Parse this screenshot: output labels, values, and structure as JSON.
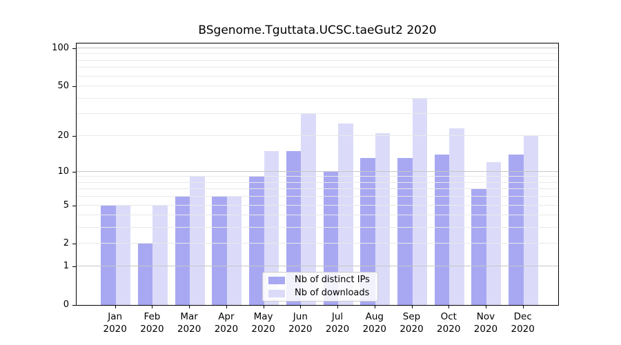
{
  "chart_data": {
    "type": "bar",
    "title": "BSgenome.Tguttata.UCSC.taeGut2 2020",
    "categories": [
      {
        "month": "Jan",
        "year": "2020"
      },
      {
        "month": "Feb",
        "year": "2020"
      },
      {
        "month": "Mar",
        "year": "2020"
      },
      {
        "month": "Apr",
        "year": "2020"
      },
      {
        "month": "May",
        "year": "2020"
      },
      {
        "month": "Jun",
        "year": "2020"
      },
      {
        "month": "Jul",
        "year": "2020"
      },
      {
        "month": "Aug",
        "year": "2020"
      },
      {
        "month": "Sep",
        "year": "2020"
      },
      {
        "month": "Oct",
        "year": "2020"
      },
      {
        "month": "Nov",
        "year": "2020"
      },
      {
        "month": "Dec",
        "year": "2020"
      }
    ],
    "series": [
      {
        "name": "Nb of distinct IPs",
        "color": "#a8a8f2",
        "values": [
          5,
          2,
          6,
          6,
          9,
          15,
          10,
          13,
          13,
          14,
          7,
          14
        ]
      },
      {
        "name": "Nb of downloads",
        "color": "#dbdbf9",
        "values": [
          5,
          5,
          9,
          6,
          15,
          30,
          25,
          21,
          40,
          23,
          12,
          20
        ]
      }
    ],
    "y_axis": {
      "scale": "log1p",
      "min": 0,
      "max": 100,
      "tick_labels": [
        100,
        50,
        20,
        10,
        5,
        2,
        1,
        0
      ],
      "major_gridlines": [
        1,
        10,
        100
      ],
      "minor_gridlines": [
        2,
        3,
        4,
        5,
        6,
        7,
        8,
        9,
        20,
        30,
        40,
        50,
        60,
        70,
        80,
        90
      ]
    },
    "legend": {
      "position": "lower center"
    },
    "grid": true,
    "colors": {
      "background": "#ffffff",
      "axis": "#000000",
      "major_grid": "#c6c6c6",
      "minor_grid": "#e9e9e9",
      "legend_border": "#cccccc",
      "legend_bg": "#ffffff"
    }
  }
}
